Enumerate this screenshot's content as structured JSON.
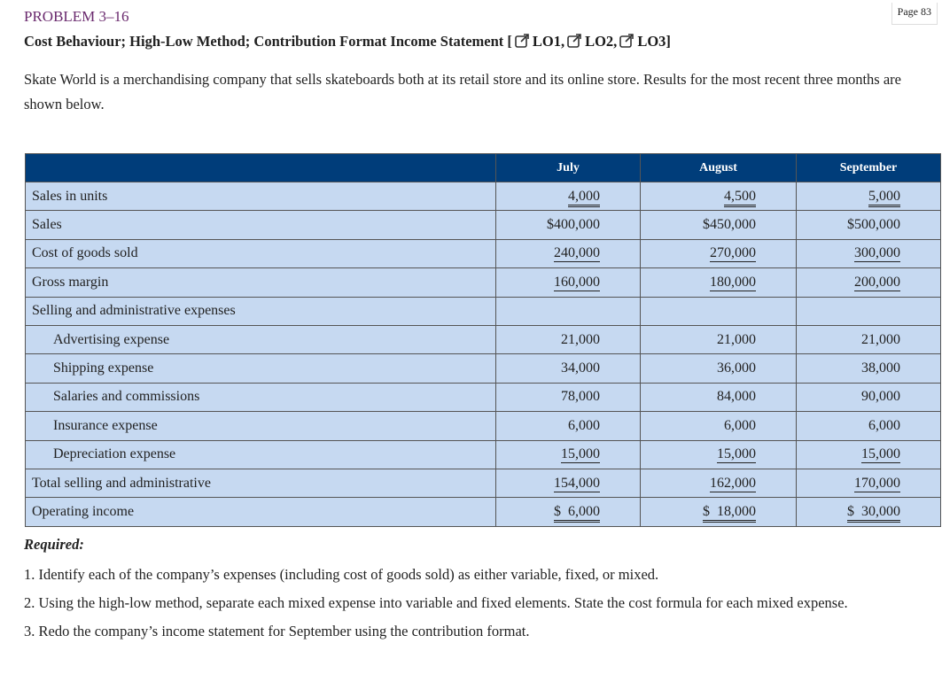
{
  "page_label": "Page 83",
  "problem": "PROBLEM 3–16",
  "heading": "Cost Behaviour; High-Low Method; Contribution Format Income Statement [",
  "objectives": [
    "LO1,",
    "LO2,",
    "LO3]"
  ],
  "intro": "Skate World is a merchandising company that sells skateboards both at its retail store and its online store. Results for the most recent three months are shown below.",
  "table": {
    "columns": [
      "July",
      "August",
      "September"
    ],
    "rows": [
      {
        "label": "Sales in units",
        "values": [
          "4,000",
          "4,500",
          "5,000"
        ],
        "underline": "double"
      },
      {
        "label": "Sales",
        "values": [
          "$400,000",
          "$450,000",
          "$500,000"
        ]
      },
      {
        "label": "Cost of goods sold",
        "values": [
          "240,000",
          "270,000",
          "300,000"
        ],
        "underline": "single"
      },
      {
        "label": "Gross margin",
        "values": [
          "160,000",
          "180,000",
          "200,000"
        ],
        "underline": "single"
      },
      {
        "label": "Selling and administrative expenses",
        "items": [
          {
            "label": "Advertising expense",
            "values": [
              "21,000",
              "21,000",
              "21,000"
            ]
          },
          {
            "label": "Shipping expense",
            "values": [
              "34,000",
              "36,000",
              "38,000"
            ]
          },
          {
            "label": "Salaries and commissions",
            "values": [
              "78,000",
              "84,000",
              "90,000"
            ]
          },
          {
            "label": "Insurance expense",
            "values": [
              "6,000",
              "6,000",
              "6,000"
            ]
          },
          {
            "label": "Depreciation expense",
            "values": [
              "15,000",
              "15,000",
              "15,000"
            ],
            "underline": "single"
          }
        ]
      },
      {
        "label": "Total selling and administrative",
        "values": [
          "154,000",
          "162,000",
          "170,000"
        ],
        "underline": "single"
      },
      {
        "label": "Operating income",
        "values": [
          "$  6,000",
          "$  18,000",
          "$  30,000"
        ],
        "underline": "double"
      }
    ]
  },
  "required": {
    "title": "Required:",
    "items": [
      "1. Identify each of the company’s expenses (including cost of goods sold) as either variable, fixed, or mixed.",
      "2. Using the high-low method, separate each mixed expense into variable and fixed elements. State the cost formula for each mixed expense.",
      "3. Redo the company’s income statement for September using the contribution format."
    ]
  }
}
